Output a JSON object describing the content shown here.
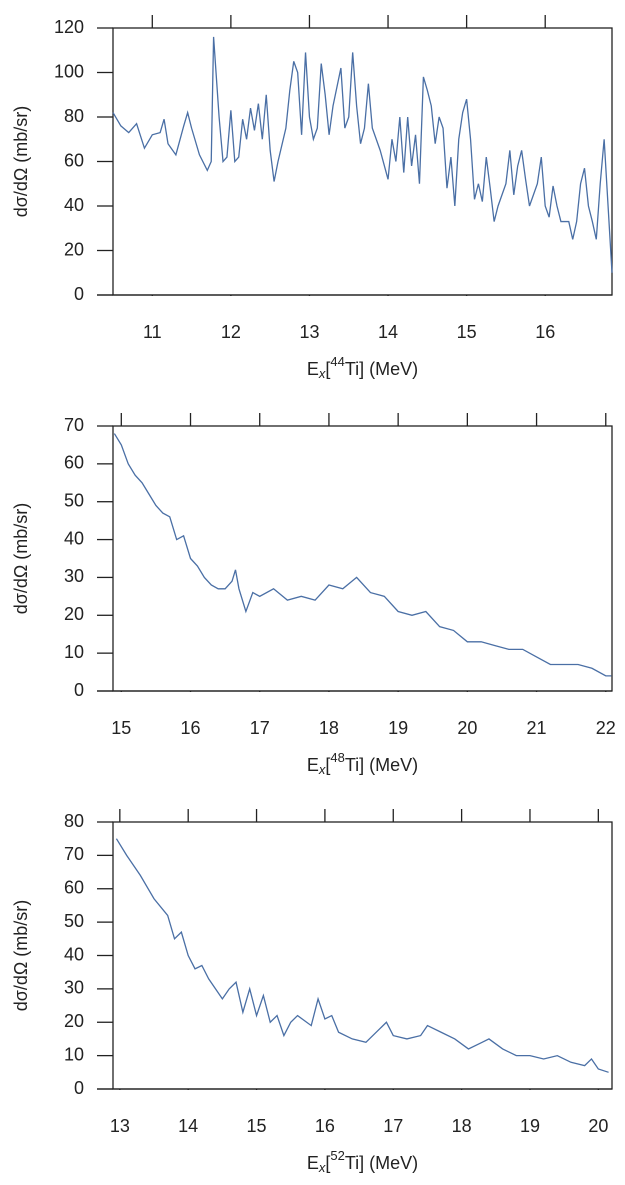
{
  "chart_data": [
    {
      "type": "line",
      "color": "#4a6fa5",
      "ylabel": "dσ/dΩ (mb/sr)",
      "xlabel": {
        "base": "E",
        "sub": "x",
        "pre": "[",
        "sup": "44",
        "post": "Ti] (MeV)"
      },
      "xlim": [
        10.5,
        16.85
      ],
      "xticks": [
        11,
        12,
        13,
        14,
        15,
        16
      ],
      "ylim": [
        0,
        120
      ],
      "yticks": [
        0,
        20,
        40,
        60,
        80,
        100,
        120
      ],
      "x": [
        10.5,
        10.6,
        10.7,
        10.8,
        10.9,
        11.0,
        11.1,
        11.15,
        11.2,
        11.3,
        11.4,
        11.45,
        11.5,
        11.6,
        11.7,
        11.75,
        11.78,
        11.85,
        11.9,
        11.95,
        12.0,
        12.05,
        12.1,
        12.15,
        12.2,
        12.25,
        12.3,
        12.35,
        12.4,
        12.45,
        12.5,
        12.55,
        12.6,
        12.7,
        12.75,
        12.8,
        12.85,
        12.9,
        12.95,
        13.0,
        13.05,
        13.1,
        13.15,
        13.2,
        13.25,
        13.3,
        13.4,
        13.45,
        13.5,
        13.55,
        13.6,
        13.65,
        13.7,
        13.75,
        13.8,
        13.9,
        14.0,
        14.05,
        14.1,
        14.15,
        14.2,
        14.25,
        14.3,
        14.35,
        14.4,
        14.45,
        14.5,
        14.55,
        14.6,
        14.65,
        14.7,
        14.75,
        14.8,
        14.85,
        14.9,
        14.95,
        15.0,
        15.05,
        15.1,
        15.15,
        15.2,
        15.25,
        15.3,
        15.35,
        15.4,
        15.5,
        15.55,
        15.6,
        15.65,
        15.7,
        15.75,
        15.8,
        15.85,
        15.9,
        15.95,
        16.0,
        16.05,
        16.1,
        16.15,
        16.2,
        16.3,
        16.35,
        16.4,
        16.45,
        16.5,
        16.55,
        16.6,
        16.65,
        16.7,
        16.75,
        16.8,
        16.85
      ],
      "values": [
        82,
        76,
        73,
        77,
        66,
        72,
        73,
        79,
        68,
        63,
        76,
        82,
        75,
        63,
        56,
        60,
        116,
        80,
        60,
        62,
        83,
        60,
        62,
        79,
        70,
        84,
        74,
        86,
        70,
        90,
        65,
        51,
        60,
        75,
        92,
        105,
        100,
        72,
        109,
        80,
        70,
        75,
        104,
        90,
        72,
        85,
        102,
        75,
        80,
        109,
        85,
        68,
        75,
        95,
        75,
        65,
        52,
        70,
        60,
        80,
        55,
        80,
        58,
        72,
        50,
        98,
        92,
        85,
        68,
        80,
        75,
        48,
        62,
        40,
        70,
        82,
        88,
        70,
        43,
        50,
        42,
        62,
        48,
        33,
        40,
        50,
        65,
        45,
        58,
        65,
        52,
        40,
        45,
        50,
        62,
        40,
        35,
        49,
        40,
        33,
        33,
        25,
        33,
        50,
        57,
        40,
        33,
        25,
        50,
        70,
        40,
        10
      ]
    },
    {
      "type": "line",
      "color": "#4a6fa5",
      "ylabel": "dσ/dΩ (mb/sr)",
      "xlabel": {
        "base": "E",
        "sub": "x",
        "pre": "[",
        "sup": "48",
        "post": "Ti] (MeV)"
      },
      "xlim": [
        14.88,
        22.09
      ],
      "xticks": [
        15,
        16,
        17,
        18,
        19,
        20,
        21,
        22
      ],
      "ylim": [
        0,
        70
      ],
      "yticks": [
        0,
        10,
        20,
        30,
        40,
        50,
        60,
        70
      ],
      "x": [
        14.9,
        15.0,
        15.1,
        15.2,
        15.3,
        15.4,
        15.5,
        15.6,
        15.7,
        15.8,
        15.9,
        16.0,
        16.1,
        16.2,
        16.3,
        16.4,
        16.5,
        16.6,
        16.65,
        16.7,
        16.8,
        16.9,
        17.0,
        17.2,
        17.4,
        17.6,
        17.8,
        18.0,
        18.2,
        18.4,
        18.6,
        18.8,
        19.0,
        19.2,
        19.4,
        19.6,
        19.8,
        20.0,
        20.2,
        20.4,
        20.6,
        20.8,
        21.0,
        21.2,
        21.4,
        21.6,
        21.8,
        22.0,
        22.08
      ],
      "values": [
        68,
        65,
        60,
        57,
        55,
        52,
        49,
        47,
        46,
        40,
        41,
        35,
        33,
        30,
        28,
        27,
        27,
        29,
        32,
        27,
        21,
        26,
        25,
        27,
        24,
        25,
        24,
        28,
        27,
        30,
        26,
        25,
        21,
        20,
        21,
        17,
        16,
        13,
        13,
        12,
        11,
        11,
        9,
        7,
        7,
        7,
        6,
        4,
        4
      ]
    },
    {
      "type": "line",
      "color": "#4a6fa5",
      "ylabel": "dσ/dΩ (mb/sr)",
      "xlabel": {
        "base": "E",
        "sub": "x",
        "pre": "[",
        "sup": "52",
        "post": "Ti] (MeV)"
      },
      "xlim": [
        12.9,
        20.2
      ],
      "xticks": [
        13,
        14,
        15,
        16,
        17,
        18,
        19,
        20
      ],
      "ylim": [
        0,
        80
      ],
      "yticks": [
        0,
        10,
        20,
        30,
        40,
        50,
        60,
        70,
        80
      ],
      "x": [
        12.95,
        13.1,
        13.3,
        13.5,
        13.7,
        13.8,
        13.9,
        14.0,
        14.1,
        14.2,
        14.3,
        14.4,
        14.5,
        14.6,
        14.7,
        14.8,
        14.9,
        15.0,
        15.1,
        15.2,
        15.3,
        15.4,
        15.5,
        15.6,
        15.8,
        15.9,
        16.0,
        16.1,
        16.2,
        16.4,
        16.6,
        16.8,
        16.9,
        17.0,
        17.2,
        17.4,
        17.5,
        17.7,
        17.9,
        18.1,
        18.3,
        18.4,
        18.6,
        18.8,
        19.0,
        19.2,
        19.4,
        19.6,
        19.8,
        19.9,
        20.0,
        20.15
      ],
      "values": [
        75,
        70,
        64,
        57,
        52,
        45,
        47,
        40,
        36,
        37,
        33,
        30,
        27,
        30,
        32,
        23,
        30,
        22,
        28,
        20,
        22,
        16,
        20,
        22,
        19,
        27,
        21,
        22,
        17,
        15,
        14,
        18,
        20,
        16,
        15,
        16,
        19,
        17,
        15,
        12,
        14,
        15,
        12,
        10,
        10,
        9,
        10,
        8,
        7,
        9,
        6,
        5
      ]
    }
  ]
}
